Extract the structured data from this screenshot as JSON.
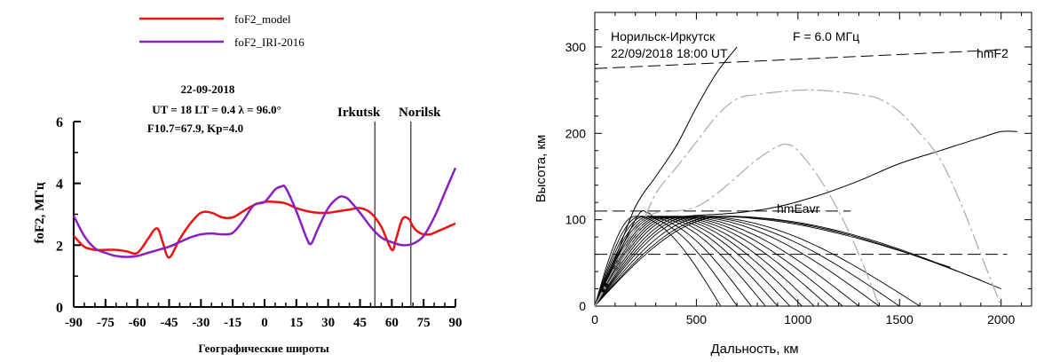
{
  "chart_data": [
    {
      "type": "line",
      "legend": [
        "foF2_model",
        "foF2_IRI-2016"
      ],
      "annotation_lines": [
        "22-09-2018",
        "UT = 18  LT = 0.4  λ = 96.0°",
        "F10.7=67.9, Kp=4.0"
      ],
      "markers": [
        {
          "label": "Irkutsk",
          "x": 52
        },
        {
          "label": "Norilsk",
          "x": 69
        }
      ],
      "xlabel": "Географические широты",
      "ylabel": "foF2, МГц",
      "xlim": [
        -90,
        90
      ],
      "ylim": [
        0,
        6
      ],
      "xticks": [
        -90,
        -75,
        -60,
        -45,
        -30,
        -15,
        0,
        15,
        30,
        45,
        60,
        75,
        90
      ],
      "yticks": [
        0,
        2,
        4,
        6
      ],
      "colors": {
        "foF2_model": "#ee1111",
        "foF2_IRI-2016": "#8a1fbf"
      },
      "series": [
        {
          "name": "foF2_model",
          "x": [
            -90,
            -85,
            -80,
            -75,
            -70,
            -65,
            -60,
            -55,
            -52,
            -50,
            -48,
            -45,
            -40,
            -35,
            -30,
            -25,
            -20,
            -15,
            -10,
            -5,
            0,
            5,
            10,
            15,
            20,
            25,
            30,
            35,
            40,
            45,
            50,
            55,
            60,
            62,
            65,
            68,
            70,
            72,
            75,
            78,
            80,
            85,
            90
          ],
          "y": [
            2.3,
            1.95,
            1.85,
            1.85,
            1.85,
            1.8,
            1.75,
            2.2,
            2.5,
            2.5,
            2.1,
            1.6,
            2.2,
            2.7,
            3.05,
            3.05,
            2.9,
            2.9,
            3.1,
            3.3,
            3.4,
            3.4,
            3.35,
            3.2,
            3.1,
            3.05,
            3.05,
            3.1,
            3.15,
            3.2,
            3.05,
            2.6,
            1.85,
            2.2,
            2.85,
            2.85,
            2.6,
            2.45,
            2.35,
            2.35,
            2.4,
            2.55,
            2.7
          ]
        },
        {
          "name": "foF2_IRI-2016",
          "x": [
            -90,
            -85,
            -80,
            -75,
            -70,
            -65,
            -60,
            -55,
            -50,
            -45,
            -40,
            -35,
            -30,
            -25,
            -20,
            -15,
            -10,
            -5,
            0,
            5,
            8,
            10,
            15,
            20,
            22,
            25,
            30,
            35,
            38,
            40,
            45,
            50,
            55,
            60,
            65,
            70,
            75,
            80,
            85,
            90
          ],
          "y": [
            2.95,
            2.3,
            1.9,
            1.75,
            1.65,
            1.62,
            1.65,
            1.75,
            1.85,
            1.95,
            2.1,
            2.25,
            2.35,
            2.38,
            2.35,
            2.4,
            2.8,
            3.3,
            3.4,
            3.8,
            3.9,
            3.85,
            3.1,
            2.2,
            2.05,
            2.5,
            3.2,
            3.55,
            3.55,
            3.45,
            3.05,
            2.6,
            2.25,
            2.1,
            2.0,
            2.05,
            2.3,
            2.9,
            3.7,
            4.5
          ]
        }
      ]
    },
    {
      "type": "line",
      "title_left": "Норильск-Иркутск",
      "title_date": "22/09/2018   18:00 UT",
      "title_freq": "F = 6.0 МГц",
      "xlabel": "Дальность, км",
      "ylabel": "Высота, км",
      "xlim": [
        0,
        2150
      ],
      "ylim": [
        0,
        340
      ],
      "xticks": [
        0,
        500,
        1000,
        1500,
        2000
      ],
      "yticks": [
        0,
        100,
        200,
        300
      ],
      "dashed_lines": [
        {
          "label": "hmF2",
          "x": [
            0,
            2030
          ],
          "y": [
            275,
            297
          ]
        },
        {
          "label": "hmEavr",
          "x": [
            0,
            1260
          ],
          "y": [
            110,
            110
          ]
        },
        {
          "label": "",
          "x": [
            0,
            2030
          ],
          "y": [
            60,
            60
          ]
        }
      ],
      "ray_ranges": [
        620,
        700,
        770,
        840,
        900,
        960,
        1020,
        1080,
        1150,
        1220,
        1300,
        1400,
        1500,
        1600,
        1750,
        1900,
        2000
      ],
      "upper_rays": [
        {
          "color": "#000000",
          "x": [
            0,
            100,
            200,
            300,
            400,
            500,
            600,
            700
          ],
          "y": [
            0,
            55,
            115,
            150,
            185,
            230,
            270,
            300
          ]
        },
        {
          "color": "#000000",
          "x": [
            0,
            200,
            260,
            300,
            400,
            500,
            700,
            900,
            1100,
            1300,
            1500,
            1700,
            1900,
            2000,
            2080
          ],
          "y": [
            0,
            100,
            108,
            102,
            103,
            105,
            108,
            115,
            128,
            145,
            165,
            180,
            195,
            202,
            202
          ]
        },
        {
          "color": "#aaaaaa",
          "x": [
            0,
            200,
            300,
            400,
            500,
            600,
            700,
            800,
            900,
            1000,
            1100,
            1200,
            1300,
            1400,
            1500,
            1600,
            1700,
            1800,
            1900,
            2000
          ],
          "y": [
            0,
            80,
            130,
            160,
            190,
            220,
            240,
            245,
            248,
            250,
            250,
            248,
            245,
            240,
            225,
            200,
            170,
            120,
            60,
            0
          ]
        },
        {
          "color": "#aaaaaa",
          "x": [
            0,
            200,
            300,
            400,
            500,
            600,
            700,
            800,
            900,
            950,
            1000,
            1100,
            1200,
            1300,
            1400
          ],
          "y": [
            0,
            90,
            108,
            110,
            115,
            130,
            150,
            170,
            185,
            187,
            180,
            150,
            110,
            60,
            0
          ]
        }
      ]
    }
  ]
}
